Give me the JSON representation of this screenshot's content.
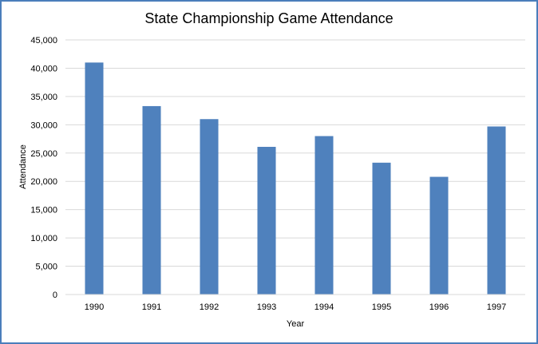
{
  "chart_data": {
    "type": "bar",
    "title": "State Championship Game Attendance",
    "xlabel": "Year",
    "ylabel": "Attendance",
    "categories": [
      "1990",
      "1991",
      "1992",
      "1993",
      "1994",
      "1995",
      "1996",
      "1997"
    ],
    "values": [
      41000,
      33300,
      31000,
      26100,
      28000,
      23300,
      20800,
      29700
    ],
    "ylim": [
      0,
      45000
    ],
    "yticks": [
      0,
      5000,
      10000,
      15000,
      20000,
      25000,
      30000,
      35000,
      40000,
      45000
    ],
    "ytick_labels": [
      "0",
      "5,000",
      "10,000",
      "15,000",
      "20,000",
      "25,000",
      "30,000",
      "35,000",
      "40,000",
      "45,000"
    ],
    "grid": true,
    "legend": "none",
    "colors": {
      "bar": "#4f81bd",
      "grid": "#d9d9d9",
      "border": "#4a7ebb"
    }
  }
}
